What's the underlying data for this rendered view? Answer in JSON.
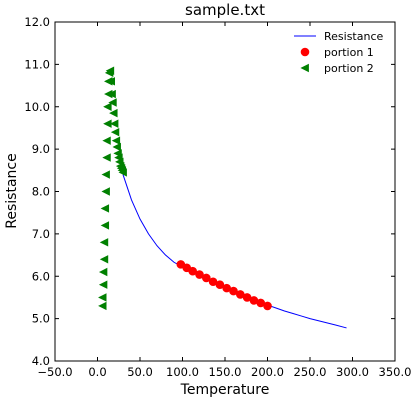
{
  "chart_data": {
    "type": "line",
    "title": "sample.txt",
    "xlabel": "Temperature",
    "ylabel": "Resistance",
    "xlim": [
      -50,
      350
    ],
    "ylim": [
      4,
      12
    ],
    "xticks": [
      "−50.0",
      "0.0",
      "50.0",
      "100.0",
      "150.0",
      "200.0",
      "250.0",
      "300.0",
      "350.0"
    ],
    "yticks": [
      "4.0",
      "5.0",
      "6.0",
      "7.0",
      "8.0",
      "9.0",
      "10.0",
      "11.0",
      "12.0"
    ],
    "grid": false,
    "legend_position": "top-right",
    "series": [
      {
        "name": "Resistance",
        "style": "line",
        "color": "#0000ff",
        "x": [
          30,
          40,
          50,
          60,
          70,
          80,
          90,
          100,
          110,
          120,
          130,
          140,
          150,
          160,
          170,
          180,
          190,
          200,
          210,
          220,
          230,
          240,
          250,
          260,
          270,
          280,
          293
        ],
        "y": [
          8.4,
          7.8,
          7.35,
          7.0,
          6.72,
          6.5,
          6.33,
          6.22,
          6.11,
          6.0,
          5.9,
          5.8,
          5.72,
          5.63,
          5.55,
          5.47,
          5.4,
          5.32,
          5.25,
          5.18,
          5.12,
          5.06,
          5.0,
          4.95,
          4.9,
          4.85,
          4.78
        ]
      },
      {
        "name": "portion 1",
        "style": "marker-circle",
        "color": "#ff0000",
        "x": [
          98,
          105,
          112,
          120,
          128,
          136,
          144,
          152,
          160,
          168,
          176,
          184,
          192,
          200
        ],
        "y": [
          6.28,
          6.2,
          6.12,
          6.04,
          5.96,
          5.87,
          5.8,
          5.72,
          5.65,
          5.57,
          5.5,
          5.43,
          5.37,
          5.3
        ]
      },
      {
        "name": "portion 2",
        "style": "marker-triangle-left",
        "color": "#008000",
        "x": [
          6,
          6,
          7,
          7,
          8,
          8,
          9,
          9,
          10,
          10,
          11,
          11,
          12,
          12,
          13,
          13,
          14,
          15,
          16,
          17,
          18,
          19,
          20,
          21,
          22,
          23,
          24,
          25,
          26,
          27,
          28,
          29,
          30
        ],
        "y": [
          5.3,
          5.5,
          5.8,
          6.1,
          6.4,
          6.8,
          7.2,
          7.6,
          8.0,
          8.4,
          8.8,
          9.2,
          9.6,
          10.0,
          10.3,
          10.6,
          10.8,
          10.85,
          10.6,
          10.3,
          10.1,
          9.85,
          9.6,
          9.4,
          9.2,
          9.05,
          8.9,
          8.8,
          8.7,
          8.6,
          8.55,
          8.5,
          8.45
        ]
      }
    ]
  }
}
